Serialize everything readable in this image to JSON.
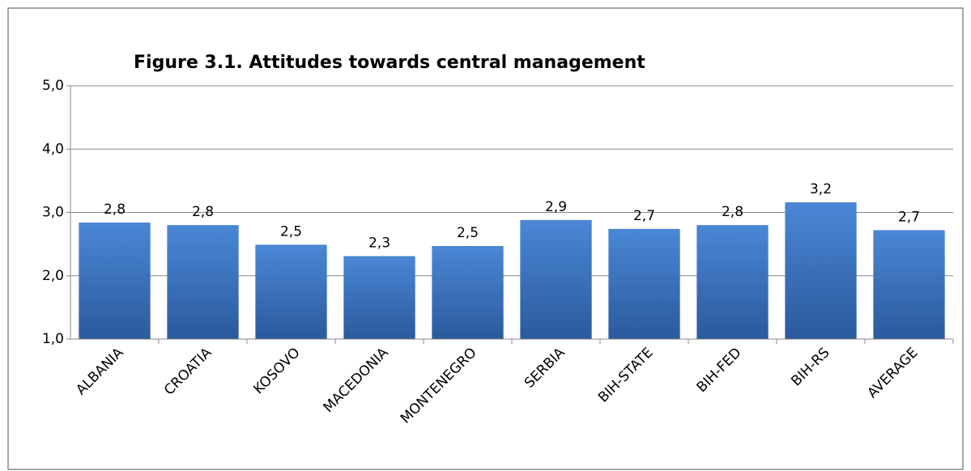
{
  "chart_data": {
    "type": "bar",
    "title": "Figure 3.1. Attitudes towards central management",
    "categories": [
      "ALBANIA",
      "CROATIA",
      "KOSOVO",
      "MACEDONIA",
      "MONTENEGRO",
      "SERBIA",
      "BIH-STATE",
      "BIH-FED",
      "BIH-RS",
      "AVERAGE"
    ],
    "values": [
      2.84,
      2.8,
      2.49,
      2.31,
      2.47,
      2.88,
      2.74,
      2.8,
      3.16,
      2.72
    ],
    "value_labels": [
      "2,8",
      "2,8",
      "2,5",
      "2,3",
      "2,5",
      "2,9",
      "2,7",
      "2,8",
      "3,2",
      "2,7"
    ],
    "color": "#3a72bd",
    "ylim": [
      1,
      5
    ],
    "yticks": [
      {
        "value": 1,
        "label": "1,0"
      },
      {
        "value": 2,
        "label": "2,0"
      },
      {
        "value": 3,
        "label": "3,0"
      },
      {
        "value": 4,
        "label": "4,0"
      },
      {
        "value": 5,
        "label": "5,0"
      }
    ],
    "grid": true
  }
}
